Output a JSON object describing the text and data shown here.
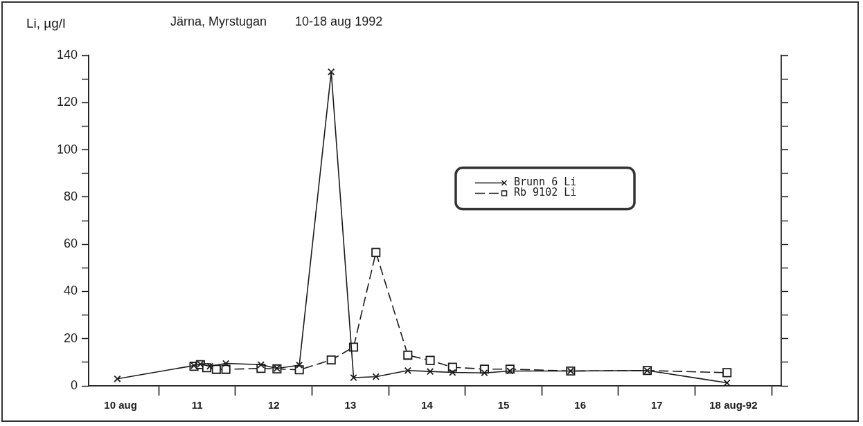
{
  "chart_data": {
    "type": "line",
    "title": "Järna, Myrstugan   10-18 aug 1992",
    "ylabel": "Li, µg/l",
    "xlim": [
      "1992-08-10T02:00",
      "1992-08-19T03:00"
    ],
    "xticks": [
      {
        "value": "1992-08-10T12:00",
        "label": "10 aug"
      },
      {
        "value": "1992-08-11T00:00",
        "label": null
      },
      {
        "value": "1992-08-11T12:00",
        "label": "11"
      },
      {
        "value": "1992-08-12T00:00",
        "label": null
      },
      {
        "value": "1992-08-12T12:00",
        "label": "12"
      },
      {
        "value": "1992-08-13T00:00",
        "label": null
      },
      {
        "value": "1992-08-13T12:00",
        "label": "13"
      },
      {
        "value": "1992-08-14T00:00",
        "label": null
      },
      {
        "value": "1992-08-14T12:00",
        "label": "14"
      },
      {
        "value": "1992-08-15T00:00",
        "label": null
      },
      {
        "value": "1992-08-15T12:00",
        "label": "15"
      },
      {
        "value": "1992-08-16T00:00",
        "label": null
      },
      {
        "value": "1992-08-16T12:00",
        "label": "16"
      },
      {
        "value": "1992-08-17T00:00",
        "label": null
      },
      {
        "value": "1992-08-17T12:00",
        "label": "17"
      },
      {
        "value": "1992-08-18T00:00",
        "label": null
      },
      {
        "value": "1992-08-18T12:00",
        "label": "18 aug-92"
      },
      {
        "value": "1992-08-19T00:00",
        "label": null
      }
    ],
    "ylim": [
      0,
      140
    ],
    "yticks": [
      0,
      {
        "value": 10,
        "label": null
      },
      20,
      {
        "value": 30,
        "label": null
      },
      40,
      {
        "value": 50,
        "label": null
      },
      60,
      {
        "value": 70,
        "label": null
      },
      80,
      {
        "value": 90,
        "label": null
      },
      100,
      {
        "value": 110,
        "label": null
      },
      120,
      {
        "value": 130,
        "label": null
      },
      140
    ],
    "legend": "right",
    "series": [
      {
        "name": "Brunn 6 Li",
        "color": "#1a1a1a",
        "marker": "cross",
        "line_style": "solid",
        "x": [
          "1992-08-10T11:00",
          "1992-08-11T11:00",
          "1992-08-11T13:00",
          "1992-08-11T16:00",
          "1992-08-11T21:00",
          "1992-08-12T08:00",
          "1992-08-12T13:00",
          "1992-08-12T20:00",
          "1992-08-13T06:00",
          "1992-08-13T13:00",
          "1992-08-13T20:00",
          "1992-08-14T06:00",
          "1992-08-14T13:00",
          "1992-08-14T20:00",
          "1992-08-15T06:00",
          "1992-08-15T14:00",
          "1992-08-16T09:00",
          "1992-08-17T09:00",
          "1992-08-18T10:00"
        ],
        "values": [
          3,
          8.6,
          9.2,
          8.3,
          9.5,
          9,
          7.4,
          8.8,
          133,
          3.5,
          3.9,
          6.5,
          6.1,
          5.7,
          5.5,
          6.3,
          6.3,
          6.5,
          1.3
        ]
      },
      {
        "name": "Rb 9102 Li",
        "color": "#1a1a1a",
        "marker": "square",
        "line_style": "dashed",
        "x": [
          "1992-08-11T11:00",
          "1992-08-11T13:00",
          "1992-08-11T15:00",
          "1992-08-11T18:00",
          "1992-08-11T21:00",
          "1992-08-12T08:00",
          "1992-08-12T13:00",
          "1992-08-12T20:00",
          "1992-08-13T06:00",
          "1992-08-13T13:00",
          "1992-08-13T20:00",
          "1992-08-14T06:00",
          "1992-08-14T13:00",
          "1992-08-14T20:00",
          "1992-08-15T06:00",
          "1992-08-15T14:00",
          "1992-08-16T09:00",
          "1992-08-17T09:00",
          "1992-08-18T10:00"
        ],
        "values": [
          8.3,
          9,
          7.7,
          7,
          7,
          7.4,
          7.2,
          6.8,
          11,
          16.4,
          56.5,
          13,
          10.8,
          7.9,
          7.1,
          7.1,
          6.3,
          6.5,
          5.6
        ]
      }
    ]
  }
}
